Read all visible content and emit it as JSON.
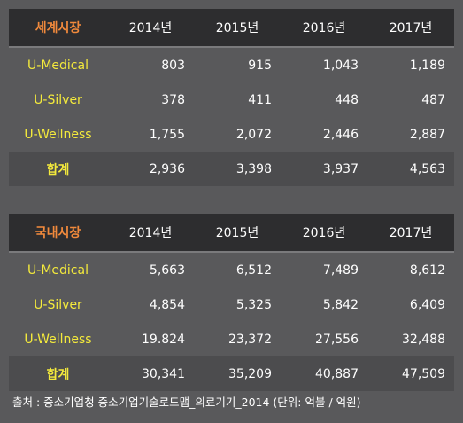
{
  "world_table": {
    "title": "세계시장",
    "years": [
      "2014년",
      "2015년",
      "2016년",
      "2017년"
    ],
    "rows": [
      {
        "label": "U-Medical",
        "values": [
          "803",
          "915",
          "1,043",
          "1,189"
        ]
      },
      {
        "label": "U-Silver",
        "values": [
          "378",
          "411",
          "448",
          "487"
        ]
      },
      {
        "label": "U-Wellness",
        "values": [
          "1,755",
          "2,072",
          "2,446",
          "2,887"
        ]
      },
      {
        "label": "합계",
        "values": [
          "2,936",
          "3,398",
          "3,937",
          "4,563"
        ]
      }
    ]
  },
  "domestic_table": {
    "title": "국내시장",
    "years": [
      "2014년",
      "2015년",
      "2016년",
      "2017년"
    ],
    "rows": [
      {
        "label": "U-Medical",
        "values": [
          "5,663",
          "6,512",
          "7,489",
          "8,612"
        ]
      },
      {
        "label": "U-Silver",
        "values": [
          "4,854",
          "5,325",
          "5,842",
          "6,409"
        ]
      },
      {
        "label": "U-Wellness",
        "values": [
          "19.824",
          "23,372",
          "27,556",
          "32,488"
        ]
      },
      {
        "label": "합계",
        "values": [
          "30,341",
          "35,209",
          "40,887",
          "47,509"
        ]
      }
    ]
  },
  "source_note": "출처 : 중소기업청 중소기업기술로드맵_의료기기_2014 (단위: 억불 / 억원)",
  "colors": {
    "background": "#59595b",
    "header_background": "#2d2d2f",
    "title_accent": "#f28a3c",
    "row_label": "#f4ea3c",
    "text": "#ffffff"
  }
}
